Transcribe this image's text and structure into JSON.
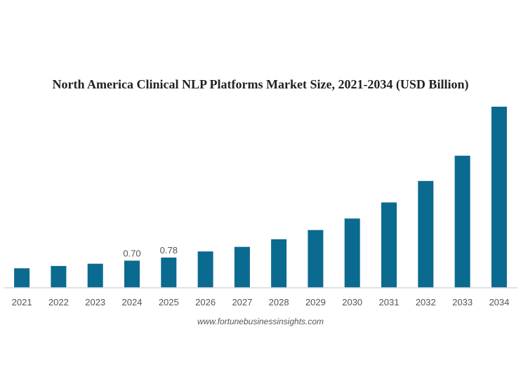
{
  "chart_data": {
    "type": "bar",
    "title": "North America Clinical NLP Platforms Market Size, 2021-2034 (USD Billion)",
    "categories": [
      "2021",
      "2022",
      "2023",
      "2024",
      "2025",
      "2026",
      "2027",
      "2028",
      "2029",
      "2030",
      "2031",
      "2032",
      "2033",
      "2034"
    ],
    "values": [
      0.5,
      0.56,
      0.62,
      0.7,
      0.78,
      0.94,
      1.06,
      1.26,
      1.5,
      1.8,
      2.22,
      2.78,
      3.44,
      4.72
    ],
    "data_labels": {
      "3": "0.70",
      "4": "0.78"
    },
    "xlabel": "",
    "ylabel": "",
    "ylim": [
      0,
      4.72
    ],
    "grid": false,
    "legend": "none",
    "bar_color": "#0b6a8f",
    "axis_color": "#d9d9d9"
  },
  "source_text": "www.fortunebusinessinsights.com"
}
